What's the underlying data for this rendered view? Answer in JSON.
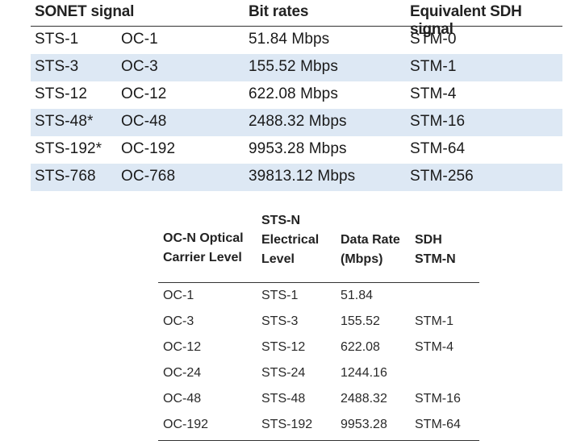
{
  "table1": {
    "headers": [
      "SONET signal",
      "Bit rates",
      "Equivalent SDH signal"
    ],
    "rows": [
      {
        "sts": "STS-1",
        "oc": "OC-1",
        "rate": "51.84 Mbps",
        "sdh": "STM-0",
        "shaded": false
      },
      {
        "sts": "STS-3",
        "oc": "OC-3",
        "rate": "155.52 Mbps",
        "sdh": "STM-1",
        "shaded": true
      },
      {
        "sts": "STS-12",
        "oc": "OC-12",
        "rate": "622.08 Mbps",
        "sdh": "STM-4",
        "shaded": false
      },
      {
        "sts": "STS-48*",
        "oc": "OC-48",
        "rate": "2488.32 Mbps",
        "sdh": "STM-16",
        "shaded": true
      },
      {
        "sts": "STS-192*",
        "oc": "OC-192",
        "rate": "9953.28 Mbps",
        "sdh": "STM-64",
        "shaded": false
      },
      {
        "sts": "STS-768",
        "oc": "OC-768",
        "rate": "39813.12 Mbps",
        "sdh": "STM-256",
        "shaded": true
      }
    ],
    "shade_color": "#dde8f4"
  },
  "table2": {
    "headers": [
      "OC-N Optical\nCarrier Level",
      "STS-N\nElectrical\nLevel",
      "Data Rate\n(Mbps)",
      "SDH\nSTM-N"
    ],
    "rows": [
      {
        "oc": "OC-1",
        "sts": "STS-1",
        "rate": "51.84",
        "stm": ""
      },
      {
        "oc": "OC-3",
        "sts": "STS-3",
        "rate": "155.52",
        "stm": "STM-1"
      },
      {
        "oc": "OC-12",
        "sts": "STS-12",
        "rate": "622.08",
        "stm": "STM-4"
      },
      {
        "oc": "OC-24",
        "sts": "STS-24",
        "rate": "1244.16",
        "stm": ""
      },
      {
        "oc": "OC-48",
        "sts": "STS-48",
        "rate": "2488.32",
        "stm": "STM-16"
      },
      {
        "oc": "OC-192",
        "sts": "STS-192",
        "rate": "9953.28",
        "stm": "STM-64"
      }
    ]
  }
}
